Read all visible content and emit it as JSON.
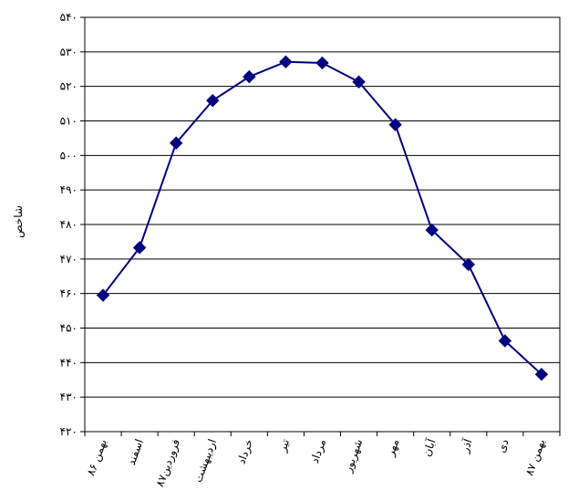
{
  "chart_data": {
    "type": "line",
    "ylabel": "شاخص",
    "ylim": [
      420,
      540
    ],
    "y_ticks": [
      "۴۲۰",
      "۴۳۰",
      "۴۴۰",
      "۴۵۰",
      "۴۶۰",
      "۴۷۰",
      "۴۸۰",
      "۴۹۰",
      "۵۰۰",
      "۵۱۰",
      "۵۲۰",
      "۵۳۰",
      "۵۴۰"
    ],
    "y_tick_values": [
      420,
      430,
      440,
      450,
      460,
      470,
      480,
      490,
      500,
      510,
      520,
      530,
      540
    ],
    "categories": [
      "بهمن ۸۶",
      "اسفند",
      "فروردین۸۷",
      "اردیبهشت",
      "خرداد",
      "تیر",
      "مرداد",
      "شهریور",
      "مهر",
      "آبان",
      "آذر",
      "دی",
      "بهمن ۸۷"
    ],
    "series": [
      {
        "values": [
          459.5,
          473.3,
          503.6,
          515.9,
          522.8,
          527.1,
          526.8,
          521.3,
          508.9,
          478.4,
          468.4,
          446.3,
          436.6
        ]
      }
    ],
    "grid": true,
    "colors": {
      "line": "#000080",
      "marker": "#000080",
      "grid": "#000000",
      "axis": "#000000"
    }
  }
}
